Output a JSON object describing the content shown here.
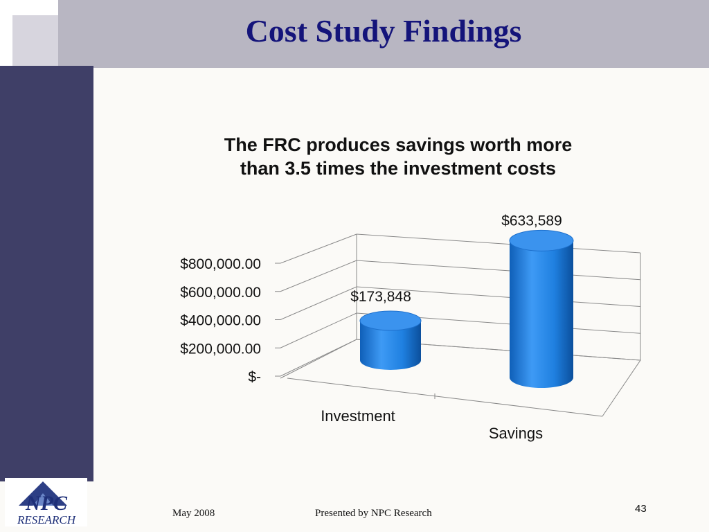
{
  "slide": {
    "title": "Cost Study Findings",
    "footer_date": "May 2008",
    "footer_presenter": "Presented by NPC Research",
    "page_number": "43",
    "logo_text": [
      "NPC",
      "RESEARCH"
    ]
  },
  "chart_data": {
    "type": "bar",
    "style": "3d-cylinder",
    "title": "The FRC produces savings worth more than 3.5 times the investment costs",
    "title_lines": [
      "The FRC produces savings worth more",
      "than 3.5 times the investment costs"
    ],
    "categories": [
      "Investment",
      "Savings"
    ],
    "values": [
      173848,
      633589
    ],
    "data_labels": [
      "$173,848",
      "$633,589"
    ],
    "ylim": [
      0,
      800000
    ],
    "yticks": [
      0,
      200000,
      400000,
      600000,
      800000
    ],
    "ytick_labels": [
      "$-",
      "$200,000.00",
      "$400,000.00",
      "$600,000.00",
      "$800,000.00"
    ],
    "grid": true,
    "legend": "none",
    "bar_color": "#1e7fe0"
  }
}
